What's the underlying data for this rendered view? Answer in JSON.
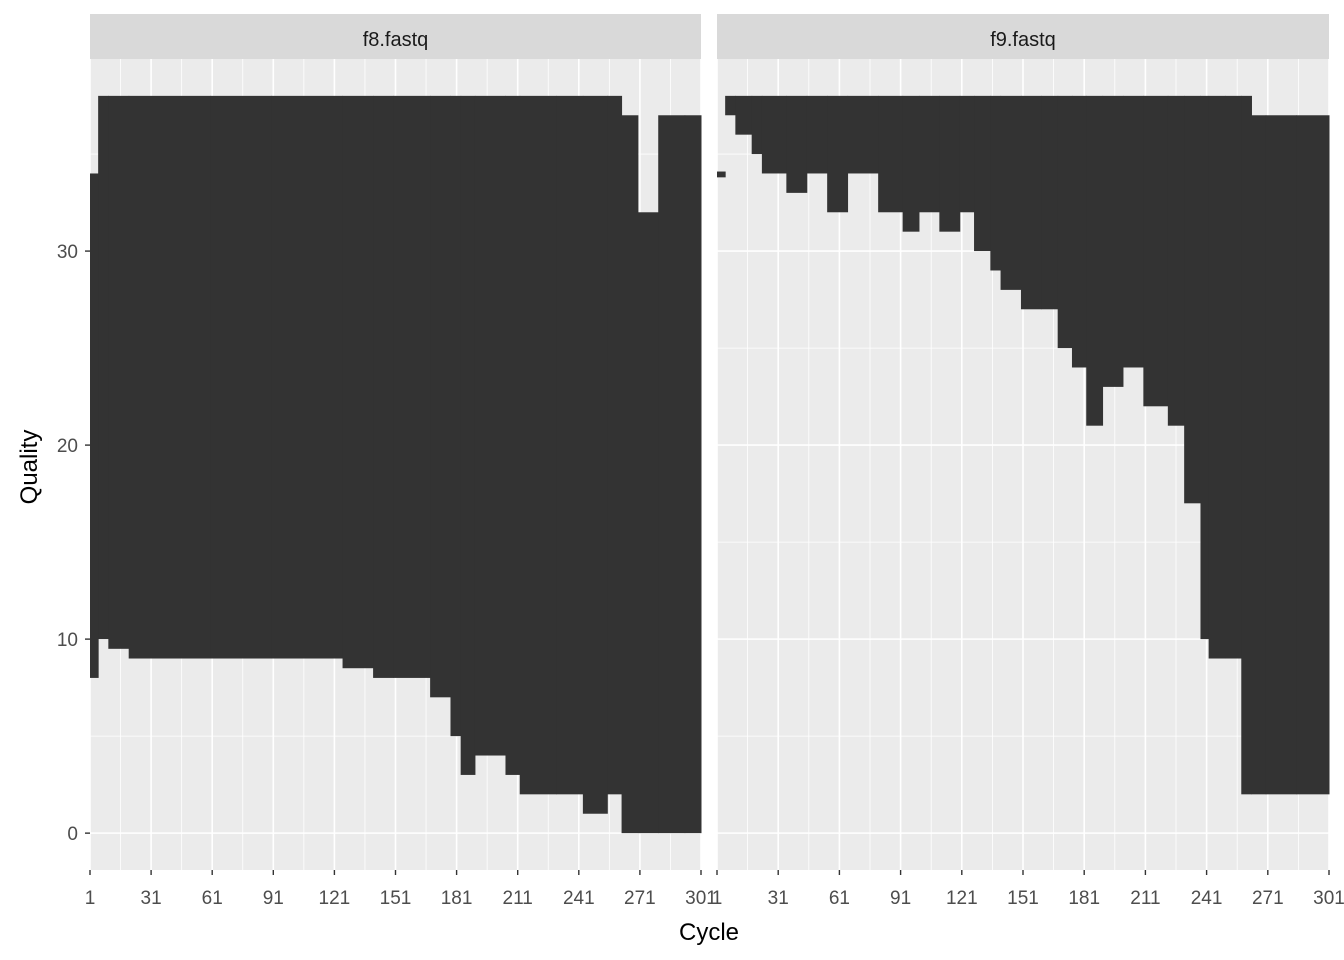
{
  "chart_data": {
    "type": "bar",
    "description_free": true,
    "xlabel": "Cycle",
    "ylabel": "Quality",
    "x_ticks": [
      1,
      31,
      61,
      91,
      121,
      151,
      181,
      211,
      241,
      271,
      301
    ],
    "y_ticks": [
      0,
      10,
      20,
      30
    ],
    "xlim": [
      1,
      301
    ],
    "ylim": [
      -1.9,
      39.9
    ],
    "grid": true,
    "colors": {
      "panel_bg": "#EBEBEB",
      "strip_bg": "#D9D9D9",
      "grid": "#FFFFFF",
      "bar": "#333333"
    },
    "facets": [
      {
        "label": "f8.fastq",
        "bars": [
          {
            "x": [
              1,
              5
            ],
            "min": 8,
            "max": 34
          },
          {
            "x": [
              5,
              10
            ],
            "min": 10,
            "max": 38
          },
          {
            "x": [
              10,
              20
            ],
            "min": 9.5,
            "max": 38
          },
          {
            "x": [
              20,
              60
            ],
            "min": 9,
            "max": 38
          },
          {
            "x": [
              60,
              90
            ],
            "min": 9,
            "max": 38
          },
          {
            "x": [
              90,
              125
            ],
            "min": 9,
            "max": 38
          },
          {
            "x": [
              125,
              140
            ],
            "min": 8.5,
            "max": 38
          },
          {
            "x": [
              140,
              150
            ],
            "min": 8,
            "max": 38
          },
          {
            "x": [
              150,
              168
            ],
            "min": 8,
            "max": 38
          },
          {
            "x": [
              168,
              178
            ],
            "min": 7,
            "max": 38
          },
          {
            "x": [
              178,
              183
            ],
            "min": 5,
            "max": 38
          },
          {
            "x": [
              183,
              190
            ],
            "min": 3,
            "max": 38
          },
          {
            "x": [
              190,
              205
            ],
            "min": 4,
            "max": 38
          },
          {
            "x": [
              205,
              212
            ],
            "min": 3,
            "max": 38
          },
          {
            "x": [
              212,
              230
            ],
            "min": 2,
            "max": 38
          },
          {
            "x": [
              230,
              243
            ],
            "min": 2,
            "max": 38
          },
          {
            "x": [
              243,
              255
            ],
            "min": 1,
            "max": 38
          },
          {
            "x": [
              255,
              262
            ],
            "min": 2,
            "max": 38
          },
          {
            "x": [
              262,
              270
            ],
            "min": 0,
            "max": 37
          },
          {
            "x": [
              270,
              280
            ],
            "min": 0,
            "max": 32
          },
          {
            "x": [
              280,
              293
            ],
            "min": 0,
            "max": 37
          },
          {
            "x": [
              293,
              301
            ],
            "min": 0,
            "max": 37
          }
        ]
      },
      {
        "label": "f9.fastq",
        "bars": [
          {
            "x": [
              1,
              5
            ],
            "min": 33.8,
            "max": 34.1
          },
          {
            "x": [
              5,
              10
            ],
            "min": 37,
            "max": 38
          },
          {
            "x": [
              10,
              18
            ],
            "min": 36,
            "max": 38
          },
          {
            "x": [
              18,
              23
            ],
            "min": 35,
            "max": 38
          },
          {
            "x": [
              23,
              35
            ],
            "min": 34,
            "max": 38
          },
          {
            "x": [
              35,
              45
            ],
            "min": 33,
            "max": 38
          },
          {
            "x": [
              45,
              55
            ],
            "min": 34,
            "max": 38
          },
          {
            "x": [
              55,
              65
            ],
            "min": 32,
            "max": 38
          },
          {
            "x": [
              65,
              80
            ],
            "min": 34,
            "max": 38
          },
          {
            "x": [
              80,
              92
            ],
            "min": 32,
            "max": 38
          },
          {
            "x": [
              92,
              100
            ],
            "min": 31,
            "max": 38
          },
          {
            "x": [
              100,
              110
            ],
            "min": 32,
            "max": 38
          },
          {
            "x": [
              110,
              120
            ],
            "min": 31,
            "max": 38
          },
          {
            "x": [
              120,
              127
            ],
            "min": 32,
            "max": 38
          },
          {
            "x": [
              127,
              135
            ],
            "min": 30,
            "max": 38
          },
          {
            "x": [
              135,
              140
            ],
            "min": 29,
            "max": 38
          },
          {
            "x": [
              140,
              150
            ],
            "min": 28,
            "max": 38
          },
          {
            "x": [
              150,
              160
            ],
            "min": 27,
            "max": 38
          },
          {
            "x": [
              160,
              168
            ],
            "min": 27,
            "max": 38
          },
          {
            "x": [
              168,
              175
            ],
            "min": 25,
            "max": 38
          },
          {
            "x": [
              175,
              182
            ],
            "min": 24,
            "max": 38
          },
          {
            "x": [
              182,
              190
            ],
            "min": 21,
            "max": 38
          },
          {
            "x": [
              190,
              200
            ],
            "min": 23,
            "max": 38
          },
          {
            "x": [
              200,
              210
            ],
            "min": 24,
            "max": 38
          },
          {
            "x": [
              210,
              222
            ],
            "min": 22,
            "max": 38
          },
          {
            "x": [
              222,
              230
            ],
            "min": 21,
            "max": 38
          },
          {
            "x": [
              230,
              238
            ],
            "min": 17,
            "max": 38
          },
          {
            "x": [
              238,
              242
            ],
            "min": 10,
            "max": 38
          },
          {
            "x": [
              242,
              250
            ],
            "min": 9,
            "max": 38
          },
          {
            "x": [
              250,
              258
            ],
            "min": 9,
            "max": 38
          },
          {
            "x": [
              258,
              263
            ],
            "min": 2,
            "max": 38
          },
          {
            "x": [
              263,
              270
            ],
            "min": 2,
            "max": 37
          },
          {
            "x": [
              270,
              285
            ],
            "min": 2,
            "max": 37
          },
          {
            "x": [
              285,
              301
            ],
            "min": 2,
            "max": 37
          }
        ]
      }
    ]
  }
}
